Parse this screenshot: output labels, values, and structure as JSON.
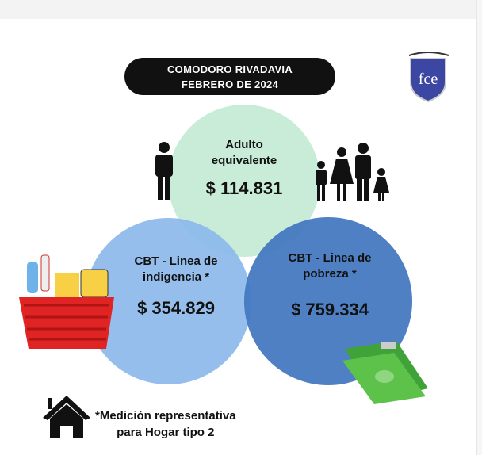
{
  "header": {
    "line1": "COMODORO RIVADAVIA",
    "line2": "FEBRERO DE 2024"
  },
  "logo": {
    "text": "fce",
    "color": "#3c47a3"
  },
  "circles": [
    {
      "label_line1": "Adulto",
      "label_line2": "equivalente",
      "value": "$ 114.831",
      "color": "#c9ecd9",
      "icon": "person-icon"
    },
    {
      "label_line1": "CBT - Linea de",
      "label_line2": "indigencia *",
      "value": "$ 354.829",
      "color": "#8db9ec",
      "icon": "shopping-basket-icon"
    },
    {
      "label_line1": "CBT - Linea de",
      "label_line2": "pobreza *",
      "value": "$ 759.334",
      "color": "#4276bf",
      "icon": "money-stack-icon"
    }
  ],
  "family_icon": "family-icon",
  "footnote": {
    "line1": "*Medición representativa",
    "line2": "para Hogar tipo 2",
    "icon": "house-icon"
  }
}
